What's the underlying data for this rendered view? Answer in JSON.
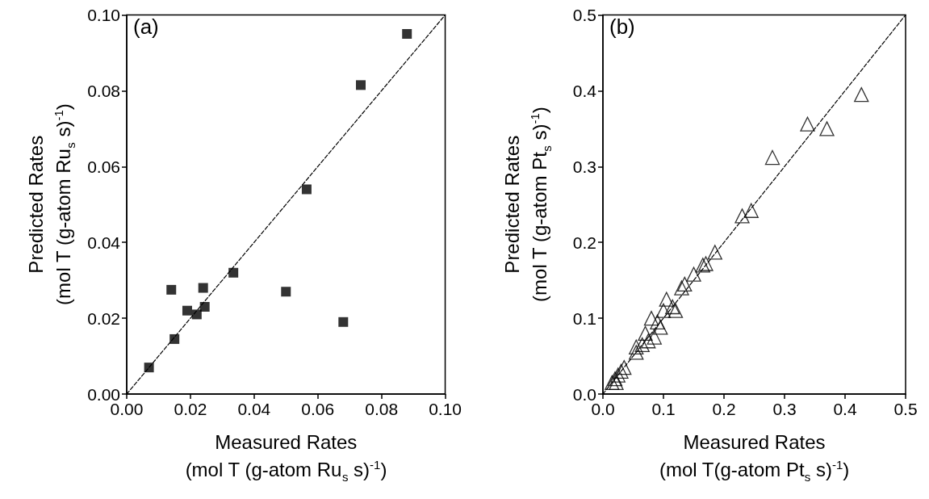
{
  "chart_data": [
    {
      "type": "scatter",
      "annotations": [
        "(a)"
      ],
      "xlabel": "Measured Rates\n(mol T (g-atom Ru$_{s}$ s)$^{-1}$)",
      "ylabel": "Predicted Rates\n(mol T (g-atom Ru$_{s}$ s)$^{-1}$)",
      "xlim": [
        0,
        0.1
      ],
      "ylim": [
        0,
        0.1
      ],
      "xticks": [
        {
          "value": 0,
          "label": "0.00"
        },
        {
          "value": 0.02,
          "label": "0.02"
        },
        {
          "value": 0.04,
          "label": "0.04"
        },
        {
          "value": 0.06,
          "label": "0.06"
        },
        {
          "value": 0.08,
          "label": "0.08"
        },
        {
          "value": 0.1,
          "label": "0.10"
        }
      ],
      "yticks": [
        {
          "value": 0,
          "label": "0.00"
        },
        {
          "value": 0.02,
          "label": "0.02"
        },
        {
          "value": 0.04,
          "label": "0.04"
        },
        {
          "value": 0.06,
          "label": "0.06"
        },
        {
          "value": 0.08,
          "label": "0.08"
        },
        {
          "value": 0.1,
          "label": "0.10"
        }
      ],
      "grid": false,
      "series": [
        {
          "color": "#000000",
          "marker": "square",
          "x": [
            0.007,
            0.014,
            0.015,
            0.019,
            0.022,
            0.024,
            0.0245,
            0.0335,
            0.05,
            0.0565,
            0.068,
            0.0735,
            0.088
          ],
          "values": [
            0.007,
            0.0275,
            0.0145,
            0.022,
            0.021,
            0.028,
            0.023,
            0.032,
            0.027,
            0.054,
            0.019,
            0.0815,
            0.095
          ]
        },
        {
          "type": "line",
          "color": "#000000",
          "marker": "none",
          "line_style": "dashed",
          "x": [
            0,
            0.1
          ],
          "values": [
            0,
            0.1
          ]
        }
      ]
    },
    {
      "type": "scatter",
      "annotations": [
        "(b)"
      ],
      "xlabel": "Measured Rates\n(mol T(g-atom Pt$_{s}$ s)$^{-1}$)",
      "ylabel": "Predicted Rates\n(mol T (g-atom Pt$_{s}$ s)$^{-1}$)",
      "xlim": [
        0,
        0.5
      ],
      "ylim": [
        0,
        0.5
      ],
      "xticks": [
        {
          "value": 0,
          "label": "0.0"
        },
        0.1,
        0.2,
        0.3,
        0.4,
        0.5
      ],
      "yticks": [
        {
          "value": 0,
          "label": "0.0"
        },
        0.1,
        0.2,
        0.3,
        0.4,
        0.5
      ],
      "grid": false,
      "series": [
        {
          "color": "#000000",
          "marker": "triangle",
          "x": [
            0.015,
            0.02,
            0.022,
            0.025,
            0.03,
            0.035,
            0.055,
            0.055,
            0.065,
            0.07,
            0.075,
            0.08,
            0.085,
            0.09,
            0.095,
            0.1,
            0.105,
            0.115,
            0.12,
            0.13,
            0.135,
            0.15,
            0.165,
            0.17,
            0.185,
            0.23,
            0.245,
            0.28,
            0.338,
            0.37,
            0.427
          ],
          "values": [
            0.015,
            0.02,
            0.015,
            0.025,
            0.03,
            0.035,
            0.055,
            0.062,
            0.065,
            0.08,
            0.07,
            0.1,
            0.075,
            0.095,
            0.088,
            0.11,
            0.125,
            0.115,
            0.11,
            0.14,
            0.145,
            0.158,
            0.17,
            0.172,
            0.187,
            0.235,
            0.242,
            0.312,
            0.356,
            0.35,
            0.395
          ]
        },
        {
          "type": "line",
          "color": "#000000",
          "marker": "none",
          "line_style": "dashed",
          "x": [
            0,
            0.5
          ],
          "values": [
            0,
            0.5
          ]
        }
      ]
    }
  ]
}
